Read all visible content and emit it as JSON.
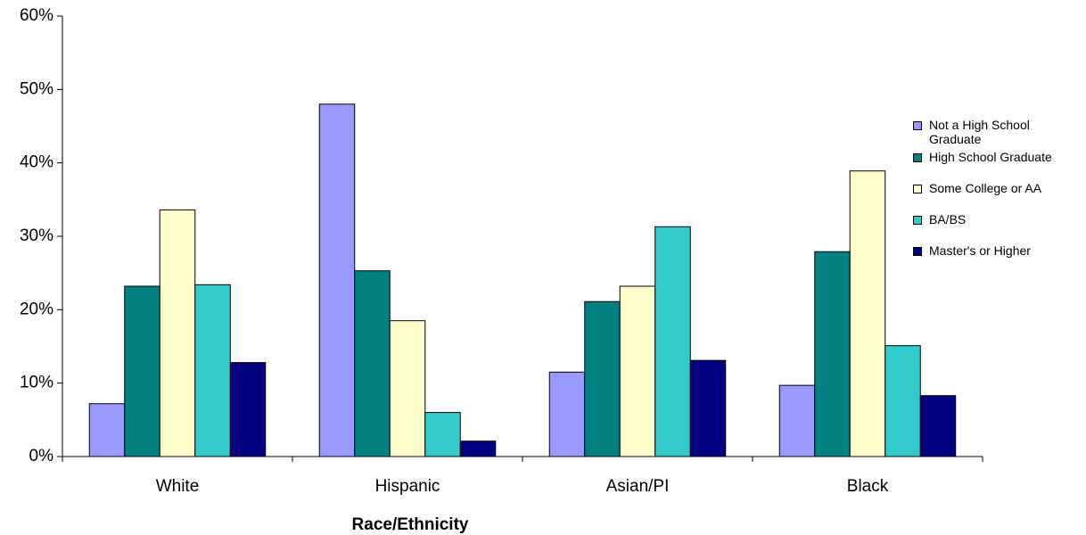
{
  "chart_data": {
    "type": "bar",
    "x_label": "Race/Ethnicity",
    "categories": [
      "White",
      "Hispanic",
      "Asian/PI",
      "Black"
    ],
    "series": [
      {
        "name": "Not a High School Graduate",
        "color": "#9999ff",
        "values": [
          7.2,
          48,
          11.5,
          9.7
        ]
      },
      {
        "name": "High School Graduate",
        "color": "#008080",
        "values": [
          23.2,
          25.3,
          21.1,
          27.9
        ]
      },
      {
        "name": "Some College or AA",
        "color": "#ffffcc",
        "values": [
          33.6,
          18.5,
          23.2,
          38.9
        ]
      },
      {
        "name": "BA/BS",
        "color": "#33cccc",
        "values": [
          23.4,
          6,
          31.3,
          15.1
        ]
      },
      {
        "name": "Master's or Higher",
        "color": "#000080",
        "values": [
          12.8,
          2.1,
          13.1,
          8.3
        ]
      }
    ],
    "ylim": [
      0,
      60
    ],
    "yticks": [
      {
        "value": 0,
        "label": "0%"
      },
      {
        "value": 10,
        "label": "10%"
      },
      {
        "value": 20,
        "label": "20%"
      },
      {
        "value": 30,
        "label": "30%"
      },
      {
        "value": 40,
        "label": "40%"
      },
      {
        "value": 50,
        "label": "50%"
      },
      {
        "value": 60,
        "label": "60%"
      }
    ],
    "grid": false,
    "legend": "right"
  }
}
